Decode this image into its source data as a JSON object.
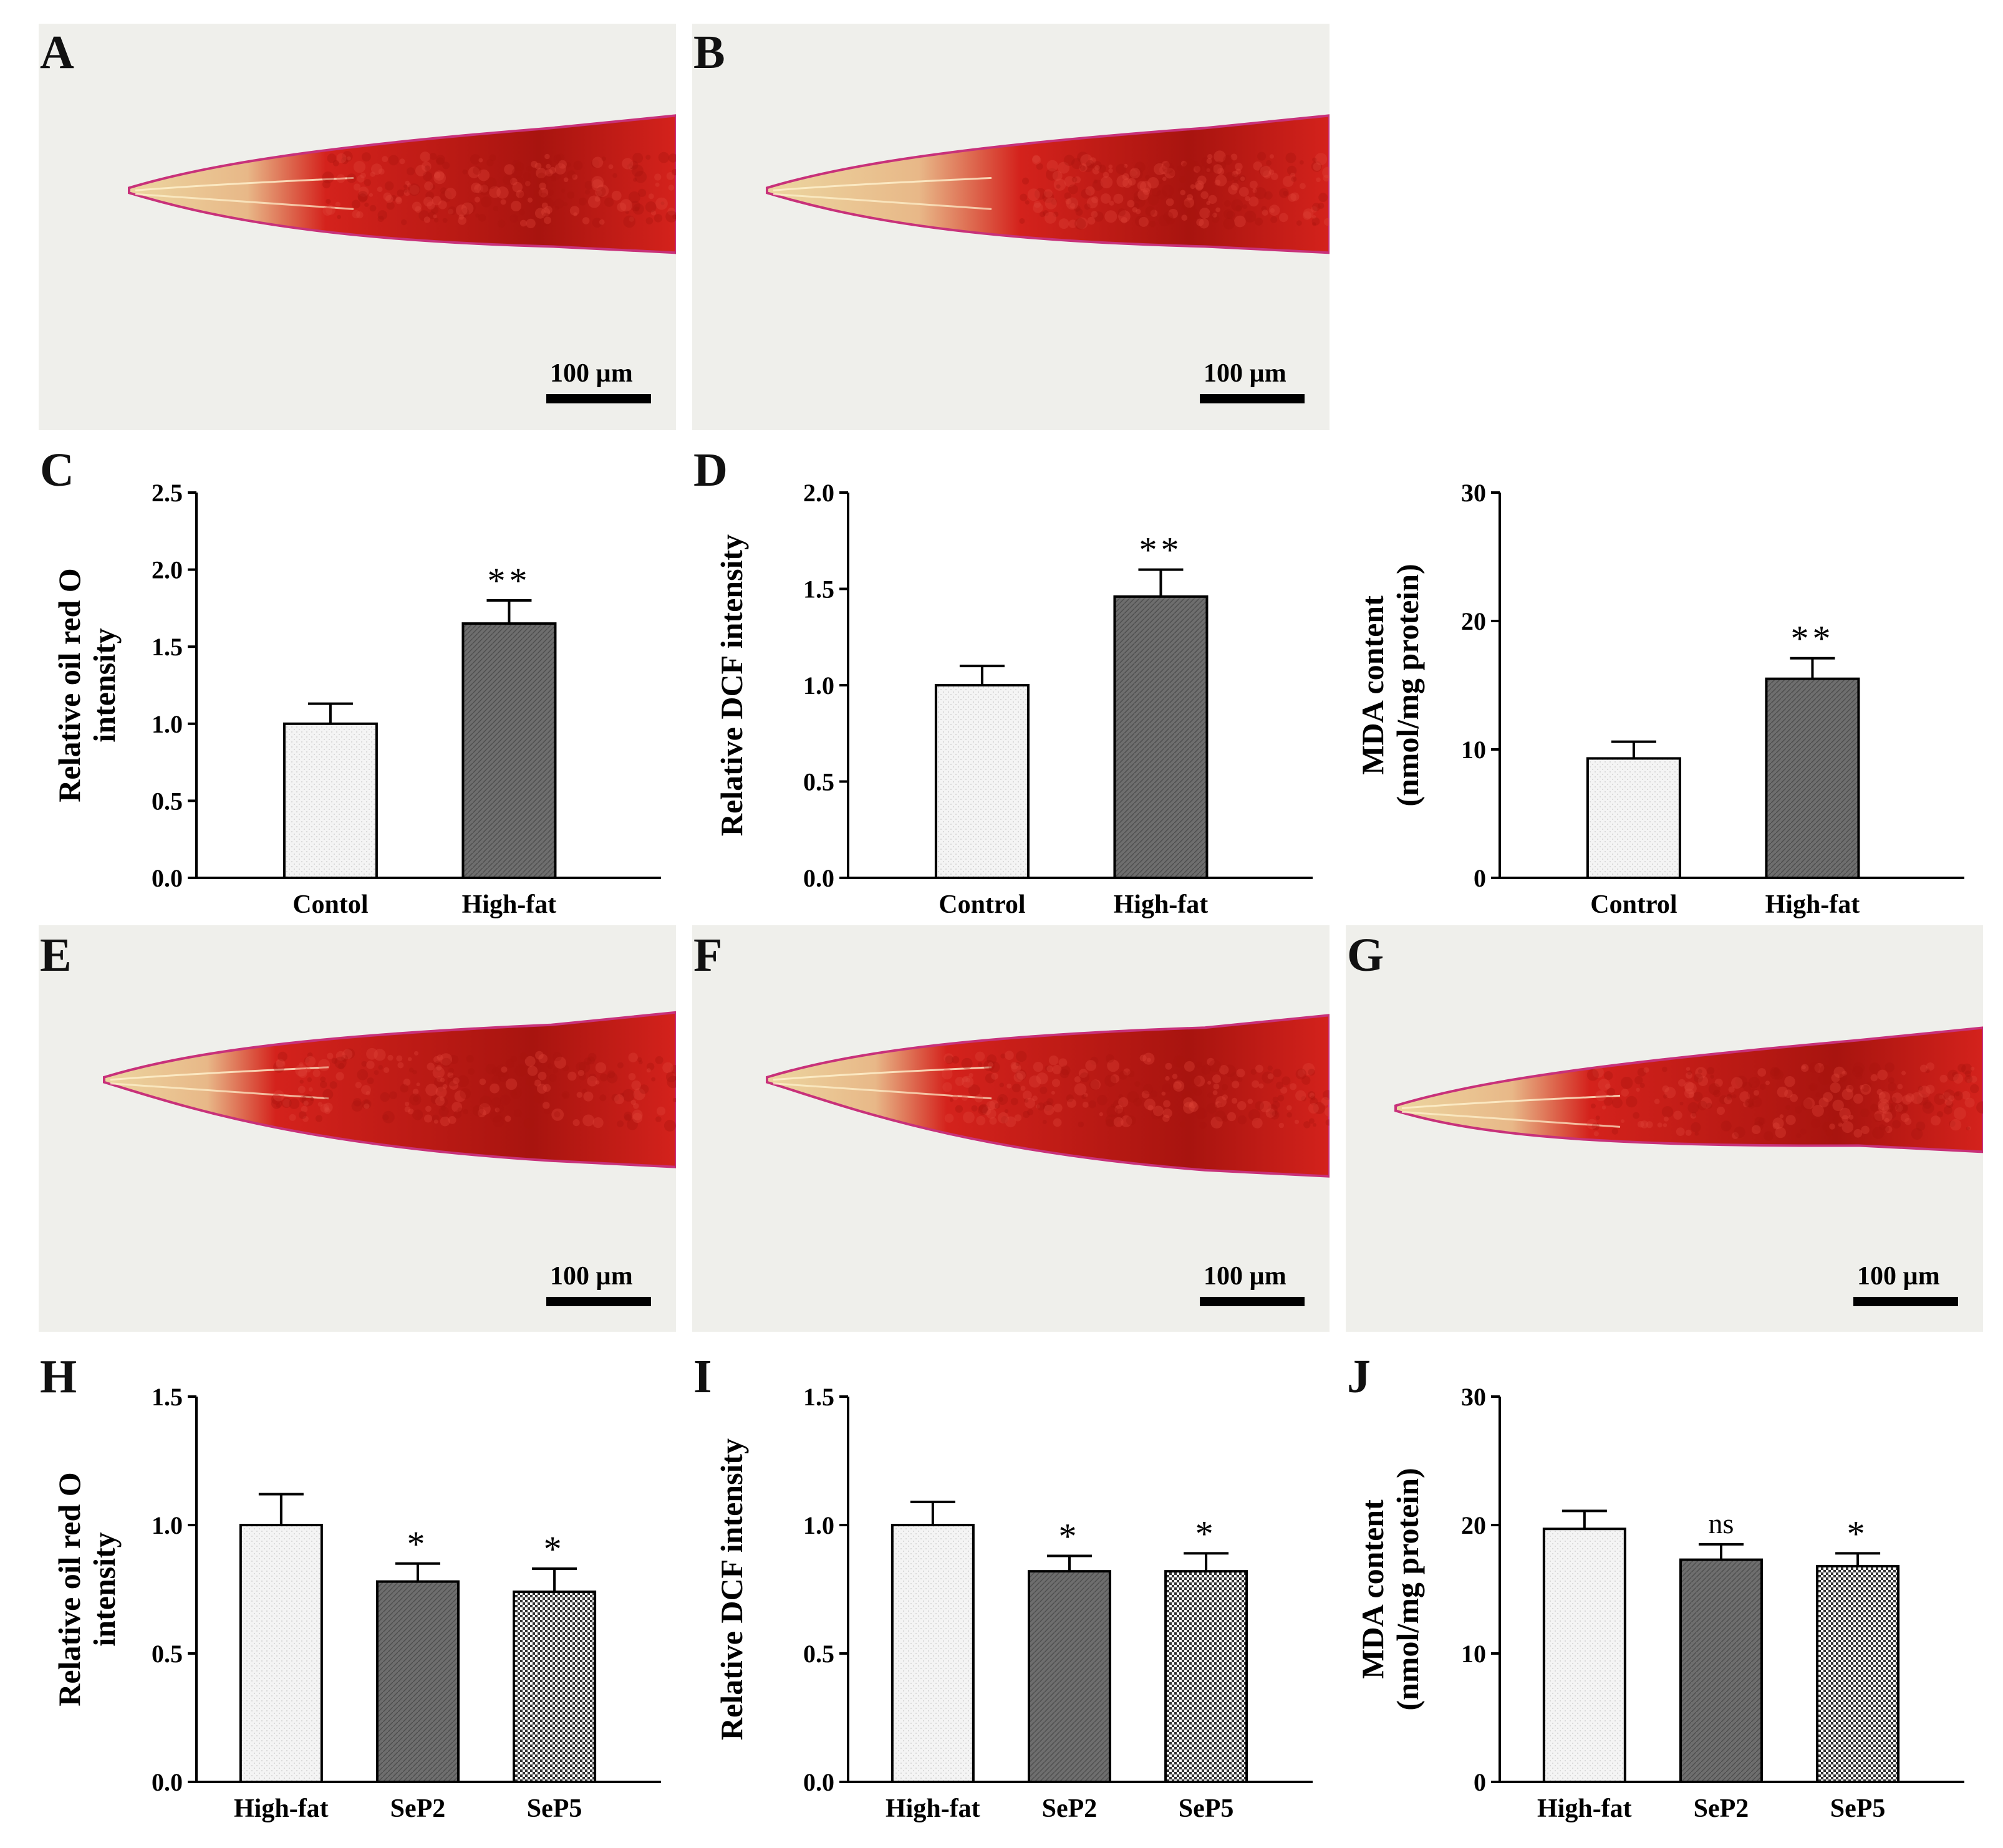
{
  "panels": [
    {
      "letter": "A",
      "scale_label": "100 µm"
    },
    {
      "letter": "B",
      "scale_label": "100 µm"
    },
    {
      "letter": "C"
    },
    {
      "letter": "D"
    },
    {
      "letter": "E",
      "scale_label": "100 µm"
    },
    {
      "letter": "F",
      "scale_label": "100 µm"
    },
    {
      "letter": "G",
      "scale_label": "100 µm"
    },
    {
      "letter": "H"
    },
    {
      "letter": "I"
    },
    {
      "letter": "J"
    }
  ],
  "colors": {
    "micro_background": "#efefeb",
    "stain_red": "#d4221c",
    "stain_dark": "#a8140f",
    "cuticle_yellow": "#ecd6a0",
    "cuticle_magenta": "#c8317a",
    "bar_light": "#f4f4f4",
    "bar_dark": "#6e6e6e",
    "bar_checker": "#9a9a9a",
    "axis": "#000000"
  },
  "chart_data": [
    {
      "id": "C",
      "type": "bar",
      "categories": [
        "Contol",
        "High-fat"
      ],
      "values": [
        1.0,
        1.65
      ],
      "errors": [
        0.13,
        0.15
      ],
      "annotations": [
        "",
        "**"
      ],
      "fills": [
        "light",
        "dark"
      ],
      "ylabel": [
        "Relative  oil red O",
        "intensity"
      ],
      "ylim": [
        0,
        2.5
      ],
      "yticks": [
        "0.0",
        "0.5",
        "1.0",
        "1.5",
        "2.0",
        "2.5"
      ]
    },
    {
      "id": "D",
      "type": "bar",
      "categories": [
        "Control",
        "High-fat"
      ],
      "values": [
        1.0,
        1.46
      ],
      "errors": [
        0.1,
        0.14
      ],
      "annotations": [
        "",
        "**"
      ],
      "fills": [
        "light",
        "dark"
      ],
      "ylabel": [
        "Relative DCF intensity"
      ],
      "ylim": [
        0,
        2.0
      ],
      "yticks": [
        "0.0",
        "0.5",
        "1.0",
        "1.5",
        "2.0"
      ]
    },
    {
      "id": "MDA1",
      "type": "bar",
      "categories": [
        "Control",
        "High-fat"
      ],
      "values": [
        9.3,
        15.5
      ],
      "errors": [
        1.3,
        1.6
      ],
      "annotations": [
        "",
        "**"
      ],
      "fills": [
        "light",
        "dark"
      ],
      "ylabel": [
        "MDA content",
        "(nmol/mg protein)"
      ],
      "ylim": [
        0,
        30
      ],
      "yticks": [
        "0",
        "10",
        "20",
        "30"
      ]
    },
    {
      "id": "H",
      "type": "bar",
      "categories": [
        "High-fat",
        "SeP2",
        "SeP5"
      ],
      "values": [
        1.0,
        0.78,
        0.74
      ],
      "errors": [
        0.12,
        0.07,
        0.09
      ],
      "annotations": [
        "",
        "*",
        "*"
      ],
      "fills": [
        "light",
        "dark",
        "checker"
      ],
      "ylabel": [
        "Relative  oil red O",
        "intensity"
      ],
      "ylim": [
        0,
        1.5
      ],
      "yticks": [
        "0.0",
        "0.5",
        "1.0",
        "1.5"
      ]
    },
    {
      "id": "I",
      "type": "bar",
      "categories": [
        "High-fat",
        "SeP2",
        "SeP5"
      ],
      "values": [
        1.0,
        0.82,
        0.82
      ],
      "errors": [
        0.09,
        0.06,
        0.07
      ],
      "annotations": [
        "",
        "*",
        "*"
      ],
      "fills": [
        "light",
        "dark",
        "checker"
      ],
      "ylabel": [
        "Relative DCF intensity"
      ],
      "ylim": [
        0,
        1.5
      ],
      "yticks": [
        "0.0",
        "0.5",
        "1.0",
        "1.5"
      ]
    },
    {
      "id": "J",
      "type": "bar",
      "categories": [
        "High-fat",
        "SeP2",
        "SeP5"
      ],
      "values": [
        19.7,
        17.3,
        16.8
      ],
      "errors": [
        1.4,
        1.2,
        1.0
      ],
      "annotations": [
        "",
        "ns",
        "*"
      ],
      "fills": [
        "light",
        "dark",
        "checker"
      ],
      "ylabel": [
        "MDA content",
        "(nmol/mg protein)"
      ],
      "ylim": [
        0,
        30
      ],
      "yticks": [
        "0",
        "10",
        "20",
        "30"
      ]
    }
  ]
}
